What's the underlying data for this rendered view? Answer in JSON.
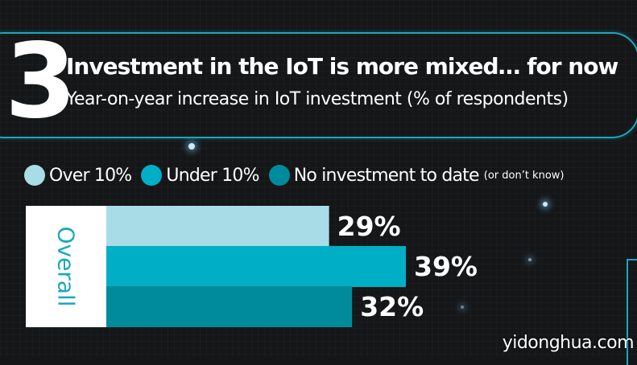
{
  "header": {
    "number": "3",
    "title": "Investment in the IoT is more mixed… for now",
    "subtitle": "Year-on-year increase in IoT investment (% of respondents)"
  },
  "legend": [
    {
      "label": "Over 10%",
      "color": "#a8dce6"
    },
    {
      "label": "Under 10%",
      "color": "#00afc6"
    },
    {
      "label": "No investment to date",
      "note": "(or don’t know)",
      "color": "#008b9c"
    }
  ],
  "chart_data": {
    "type": "bar",
    "orientation": "horizontal",
    "categories": [
      "Overall"
    ],
    "series": [
      {
        "name": "Over 10%",
        "values": [
          29
        ],
        "color": "#a8dce6"
      },
      {
        "name": "Under 10%",
        "values": [
          39
        ],
        "color": "#00afc6"
      },
      {
        "name": "No investment to date (or don’t know)",
        "values": [
          32
        ],
        "color": "#008b9c"
      }
    ],
    "value_labels": [
      "29%",
      "39%",
      "32%"
    ],
    "xlim": [
      0,
      39
    ],
    "grid": false,
    "legend_position": "top"
  },
  "watermark": "yidonghua.com"
}
